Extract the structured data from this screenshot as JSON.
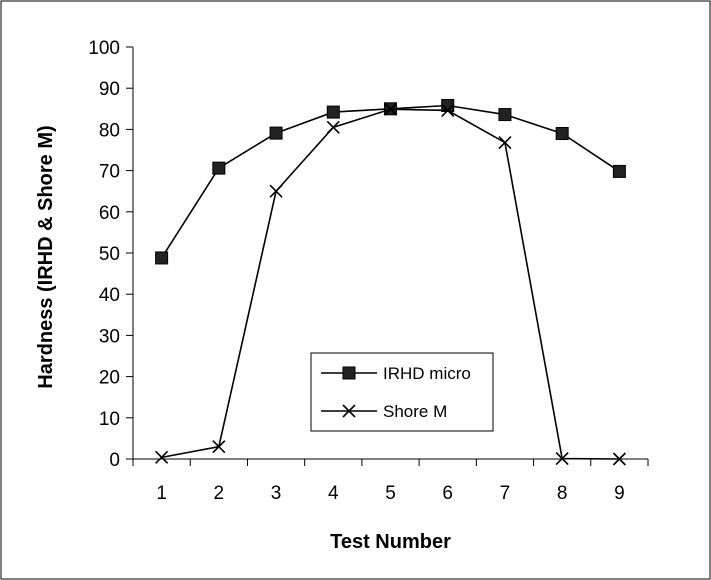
{
  "chart_data": {
    "type": "line",
    "title": "",
    "xlabel": "Test Number",
    "ylabel": "Hardness (IRHD & Shore M)",
    "categories": [
      "1",
      "2",
      "3",
      "4",
      "5",
      "6",
      "7",
      "8",
      "9"
    ],
    "x": [
      1,
      2,
      3,
      4,
      5,
      6,
      7,
      8,
      9
    ],
    "ylim": [
      0,
      100
    ],
    "yticks": [
      0,
      10,
      20,
      30,
      40,
      50,
      60,
      70,
      80,
      90,
      100
    ],
    "grid": false,
    "legend_position": "center-bottom",
    "series": [
      {
        "name": "IRHD micro",
        "marker": "square",
        "values": [
          48.8,
          70.6,
          79.1,
          84.2,
          85.0,
          85.8,
          83.6,
          79.0,
          69.8
        ]
      },
      {
        "name": "Shore M",
        "marker": "x",
        "values": [
          0.4,
          3.0,
          65.0,
          80.5,
          84.9,
          84.6,
          76.8,
          0.1,
          0.0
        ]
      }
    ],
    "colors": {
      "line": "#000000",
      "background": "#ffffff"
    }
  }
}
